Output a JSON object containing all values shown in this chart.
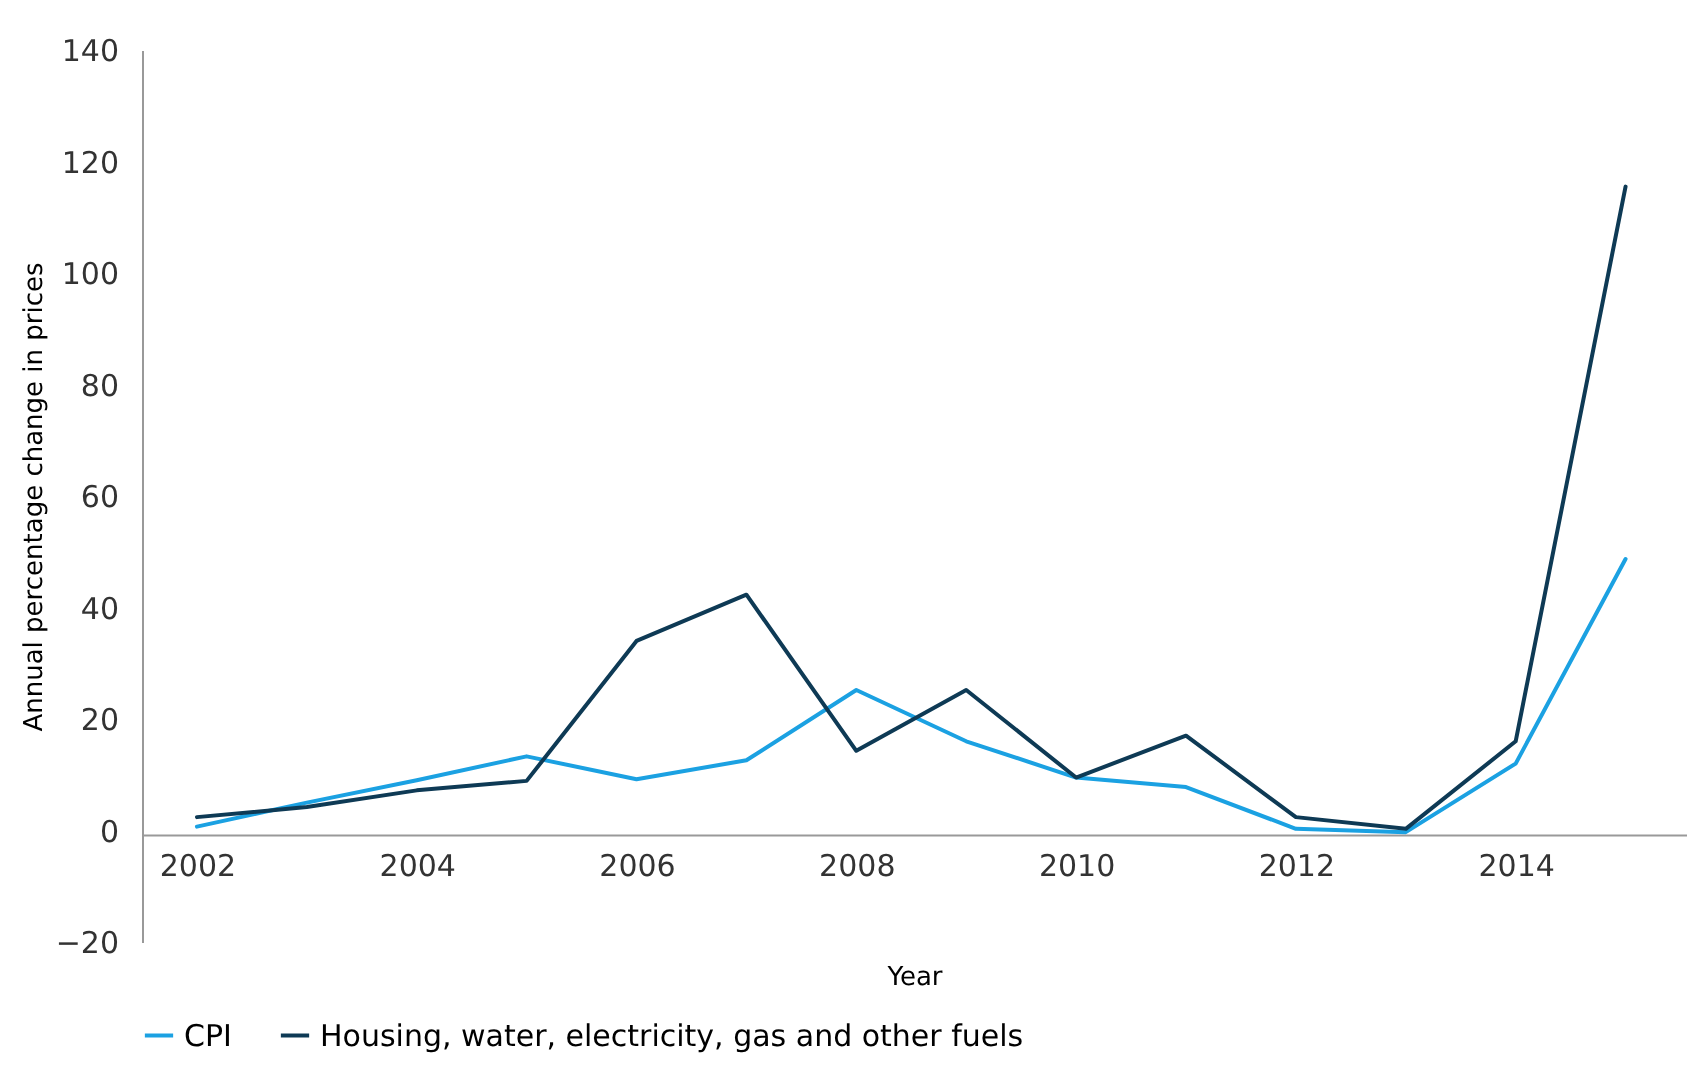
{
  "chart_data": {
    "type": "line",
    "xlabel": "Year",
    "ylabel": "Annual percentage change in prices",
    "x": [
      2002,
      2003,
      2004,
      2005,
      2006,
      2007,
      2008,
      2009,
      2010,
      2011,
      2012,
      2013,
      2014,
      2015
    ],
    "series": [
      {
        "name": "CPI",
        "color": "#1ba1e2",
        "values": [
          0.7,
          5,
          9,
          13.3,
          9.2,
          12.6,
          25.2,
          16,
          9.5,
          7.8,
          0.3,
          -0.3,
          12,
          48.7
        ]
      },
      {
        "name": "Housing, water, electricity, gas and other fuels",
        "color": "#0e3a55",
        "values": [
          2.4,
          4.2,
          7.2,
          8.9,
          34,
          42.3,
          14.3,
          25.2,
          9.5,
          17,
          2.4,
          0.3,
          16,
          115.5
        ]
      }
    ],
    "xlim": [
      2001.5,
      2015.55
    ],
    "xticks": [
      2002,
      2004,
      2006,
      2008,
      2010,
      2012,
      2014
    ],
    "ylim": [
      -20,
      140
    ],
    "yticks": [
      -20,
      0,
      20,
      40,
      60,
      80,
      100,
      120,
      140
    ],
    "grid": false,
    "legend": "bottom",
    "marker": "none",
    "line_style": "solid"
  }
}
